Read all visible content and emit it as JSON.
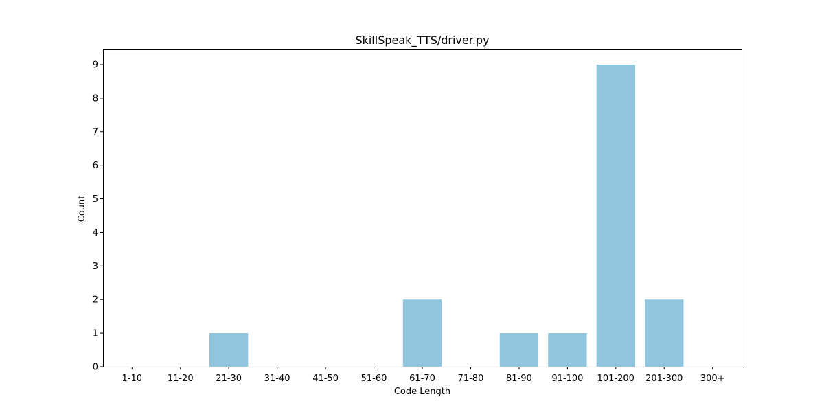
{
  "chart_data": {
    "type": "bar",
    "title": "SkillSpeak_TTS/driver.py",
    "xlabel": "Code Length",
    "ylabel": "Count",
    "categories": [
      "1-10",
      "11-20",
      "21-30",
      "31-40",
      "41-50",
      "51-60",
      "61-70",
      "71-80",
      "81-90",
      "91-100",
      "101-200",
      "201-300",
      "300+"
    ],
    "values": [
      0,
      0,
      1,
      0,
      0,
      0,
      2,
      0,
      1,
      1,
      9,
      2,
      0
    ],
    "ylim": [
      0,
      9.45
    ],
    "yticks": [
      0,
      1,
      2,
      3,
      4,
      5,
      6,
      7,
      8,
      9
    ],
    "bar_color": "#92c5de",
    "grid": false,
    "legend": "none"
  }
}
